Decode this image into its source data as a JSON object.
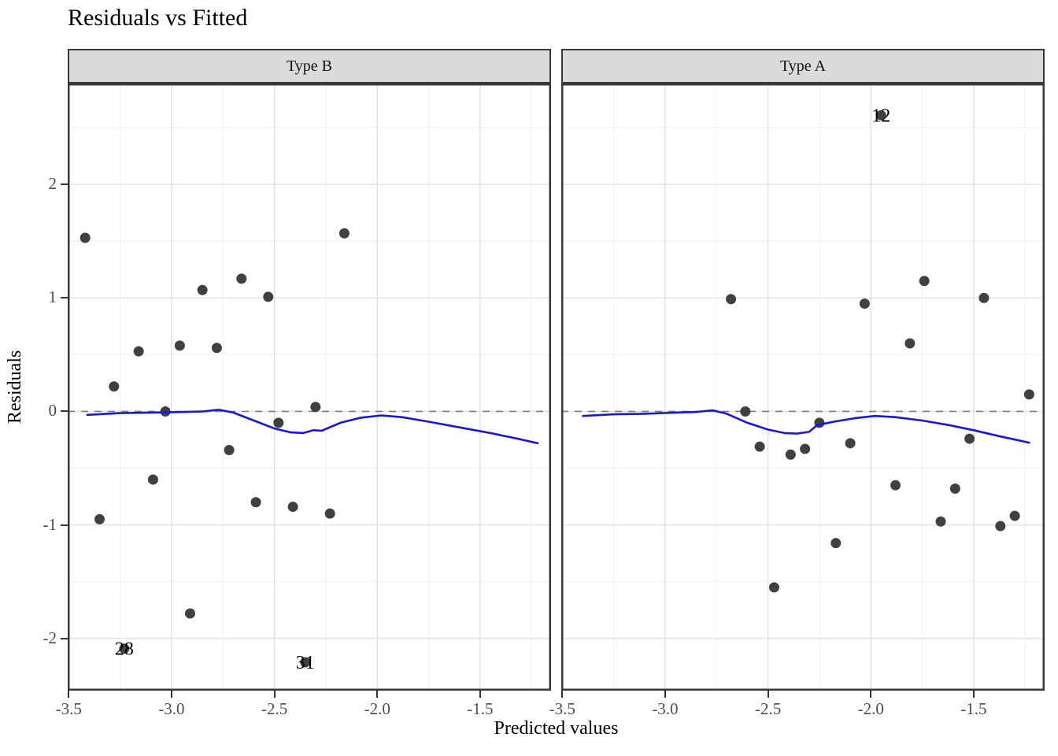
{
  "title": "Residuals vs Fitted",
  "x_axis": {
    "label": "Predicted values",
    "ticks": [
      {
        "value": -3.5,
        "label": "-3.5"
      },
      {
        "value": -3.0,
        "label": "-3.0"
      },
      {
        "value": -2.5,
        "label": "-2.5"
      },
      {
        "value": -2.0,
        "label": "-2.0"
      },
      {
        "value": -1.5,
        "label": "-1.5"
      }
    ]
  },
  "y_axis": {
    "label": "Residuals",
    "ticks": [
      {
        "value": 2,
        "label": "2"
      },
      {
        "value": 1,
        "label": "1"
      },
      {
        "value": 0,
        "label": "0"
      },
      {
        "value": -1,
        "label": "-1"
      },
      {
        "value": -2,
        "label": "-2"
      }
    ]
  },
  "colors": {
    "point": "#404040",
    "smooth_line": "#1717db",
    "zero_line": "#7d7d7d",
    "grid_major": "#e4e4e4",
    "grid_minor": "#efefef",
    "strip_bg": "#dbdbdb",
    "border": "#383838",
    "tick_text": "#4d4d4d",
    "tick_mark": "#333333"
  },
  "chart_data": {
    "type": "scatter",
    "title": "Residuals vs Fitted",
    "xlabel": "Predicted values",
    "ylabel": "Residuals",
    "xlim": [
      -3.505,
      -1.155
    ],
    "ylim": [
      -2.46,
      2.89
    ],
    "grid": "on",
    "reference_line_y": 0,
    "facets": [
      {
        "name": "Type B",
        "points": [
          [
            -3.42,
            1.53
          ],
          [
            -3.35,
            -0.95
          ],
          [
            -3.28,
            0.22
          ],
          [
            -3.16,
            0.53
          ],
          [
            -3.09,
            -0.6
          ],
          [
            -3.03,
            0.0
          ],
          [
            -2.96,
            0.58
          ],
          [
            -2.91,
            -1.78
          ],
          [
            -2.85,
            1.07
          ],
          [
            -2.78,
            0.56
          ],
          [
            -2.72,
            -0.34
          ],
          [
            -2.66,
            1.17
          ],
          [
            -2.59,
            -0.8
          ],
          [
            -2.53,
            1.01
          ],
          [
            -2.48,
            -0.1
          ],
          [
            -2.41,
            -0.84
          ],
          [
            -2.3,
            0.04
          ],
          [
            -2.23,
            -0.9
          ],
          [
            -2.16,
            1.57
          ]
        ],
        "labeled_points": [
          {
            "label": "28",
            "x": -3.23,
            "y": -2.09
          },
          {
            "label": "31",
            "x": -2.35,
            "y": -2.21
          }
        ],
        "smooth": [
          [
            -3.41,
            -0.03
          ],
          [
            -3.25,
            -0.015
          ],
          [
            -3.1,
            -0.01
          ],
          [
            -2.95,
            -0.005
          ],
          [
            -2.85,
            0.0
          ],
          [
            -2.77,
            0.015
          ],
          [
            -2.7,
            -0.01
          ],
          [
            -2.6,
            -0.08
          ],
          [
            -2.5,
            -0.15
          ],
          [
            -2.42,
            -0.185
          ],
          [
            -2.36,
            -0.19
          ],
          [
            -2.31,
            -0.165
          ],
          [
            -2.27,
            -0.17
          ],
          [
            -2.18,
            -0.1
          ],
          [
            -2.08,
            -0.055
          ],
          [
            -1.98,
            -0.035
          ],
          [
            -1.88,
            -0.05
          ],
          [
            -1.75,
            -0.09
          ],
          [
            -1.6,
            -0.14
          ],
          [
            -1.45,
            -0.19
          ],
          [
            -1.33,
            -0.235
          ],
          [
            -1.22,
            -0.28
          ]
        ]
      },
      {
        "name": "Type A",
        "points": [
          [
            -2.68,
            0.99
          ],
          [
            -2.61,
            0.0
          ],
          [
            -2.54,
            -0.31
          ],
          [
            -2.47,
            -1.55
          ],
          [
            -2.39,
            -0.38
          ],
          [
            -2.32,
            -0.33
          ],
          [
            -2.25,
            -0.1
          ],
          [
            -2.17,
            -1.16
          ],
          [
            -2.1,
            -0.28
          ],
          [
            -2.03,
            0.95
          ],
          [
            -1.88,
            -0.65
          ],
          [
            -1.81,
            0.6
          ],
          [
            -1.74,
            1.15
          ],
          [
            -1.66,
            -0.97
          ],
          [
            -1.59,
            -0.68
          ],
          [
            -1.52,
            -0.24
          ],
          [
            -1.45,
            1.0
          ],
          [
            -1.37,
            -1.01
          ],
          [
            -1.3,
            -0.92
          ],
          [
            -1.23,
            0.15
          ]
        ],
        "labeled_points": [
          {
            "label": "12",
            "x": -1.95,
            "y": 2.61
          }
        ],
        "smooth": [
          [
            -3.4,
            -0.04
          ],
          [
            -3.25,
            -0.025
          ],
          [
            -3.1,
            -0.02
          ],
          [
            -2.95,
            -0.01
          ],
          [
            -2.85,
            -0.005
          ],
          [
            -2.77,
            0.01
          ],
          [
            -2.7,
            -0.02
          ],
          [
            -2.6,
            -0.1
          ],
          [
            -2.5,
            -0.16
          ],
          [
            -2.42,
            -0.19
          ],
          [
            -2.36,
            -0.195
          ],
          [
            -2.3,
            -0.18
          ],
          [
            -2.26,
            -0.12
          ],
          [
            -2.18,
            -0.09
          ],
          [
            -2.08,
            -0.06
          ],
          [
            -1.98,
            -0.04
          ],
          [
            -1.88,
            -0.05
          ],
          [
            -1.75,
            -0.08
          ],
          [
            -1.62,
            -0.12
          ],
          [
            -1.5,
            -0.165
          ],
          [
            -1.37,
            -0.22
          ],
          [
            -1.23,
            -0.275
          ]
        ]
      }
    ]
  }
}
